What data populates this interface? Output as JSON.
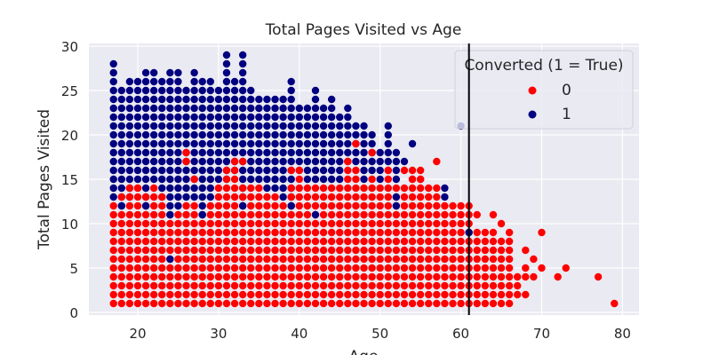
{
  "chart_data": {
    "type": "scatter",
    "title": "Total Pages Visited vs Age",
    "xlabel": "Age",
    "ylabel": "Total Pages Visited",
    "xlim": [
      13.95,
      82.05
    ],
    "ylim": [
      -0.3,
      30.3
    ],
    "xticks": [
      20,
      30,
      40,
      50,
      60,
      70,
      80
    ],
    "yticks": [
      0,
      5,
      10,
      15,
      20,
      25,
      30
    ],
    "grid": true,
    "background": "#eaeaf2",
    "legend": {
      "title": "Converted (1 = True)",
      "placement": "top-right",
      "entries": [
        {
          "label": "0",
          "color": "#ff0000"
        },
        {
          "label": "1",
          "color": "#000080"
        }
      ]
    },
    "reference_line": {
      "orientation": "vertical",
      "x": 61,
      "color": "#000000"
    },
    "series_note_format": "columns: [age, class-0 pages from 1 up to red_max, class-1 pages from blue_min to blue_max]",
    "columns": [
      [
        17,
        12,
        13,
        28
      ],
      [
        18,
        11,
        12,
        25
      ],
      [
        19,
        13,
        13,
        26
      ],
      [
        20,
        14,
        15,
        26
      ],
      [
        21,
        13,
        12,
        27
      ],
      [
        22,
        14,
        15,
        27
      ],
      [
        23,
        13,
        13,
        26
      ],
      [
        24,
        10,
        11,
        27
      ],
      [
        25,
        11,
        12,
        27
      ],
      [
        26,
        12,
        13,
        25
      ],
      [
        27,
        12,
        13,
        27
      ],
      [
        28,
        10,
        11,
        26
      ],
      [
        29,
        12,
        13,
        26
      ],
      [
        30,
        14,
        15,
        25
      ],
      [
        31,
        14,
        15,
        29
      ],
      [
        32,
        15,
        16,
        26
      ],
      [
        33,
        14,
        12,
        29
      ],
      [
        34,
        14,
        15,
        25
      ],
      [
        35,
        14,
        15,
        24
      ],
      [
        36,
        13,
        14,
        24
      ],
      [
        37,
        13,
        14,
        24
      ],
      [
        38,
        12,
        13,
        24
      ],
      [
        39,
        14,
        12,
        26
      ],
      [
        40,
        15,
        16,
        23
      ],
      [
        41,
        14,
        15,
        23
      ],
      [
        42,
        14,
        15,
        25
      ],
      [
        43,
        14,
        15,
        23
      ],
      [
        44,
        14,
        15,
        24
      ],
      [
        45,
        14,
        15,
        22
      ],
      [
        46,
        16,
        17,
        23
      ],
      [
        47,
        16,
        17,
        21
      ],
      [
        48,
        14,
        15,
        21
      ],
      [
        49,
        15,
        16,
        20
      ],
      [
        50,
        14,
        15,
        18
      ],
      [
        51,
        16,
        17,
        21
      ],
      [
        52,
        14,
        15,
        18
      ],
      [
        53,
        14,
        17,
        17
      ],
      [
        54,
        16,
        19,
        19
      ],
      [
        55,
        16,
        0,
        0
      ],
      [
        56,
        14,
        0,
        0
      ],
      [
        57,
        14,
        0,
        0
      ],
      [
        58,
        12,
        13,
        14
      ],
      [
        59,
        12,
        0,
        0
      ],
      [
        60,
        12,
        0,
        0
      ],
      [
        61,
        12,
        0,
        0
      ],
      [
        62,
        9,
        0,
        0
      ],
      [
        63,
        9,
        0,
        0
      ],
      [
        64,
        9,
        0,
        0
      ],
      [
        65,
        8,
        0,
        0
      ],
      [
        66,
        9,
        0,
        0
      ]
    ],
    "extra_points_0": [
      [
        26,
        17
      ],
      [
        26,
        18
      ],
      [
        27,
        15
      ],
      [
        31,
        15
      ],
      [
        31,
        16
      ],
      [
        32,
        16
      ],
      [
        32,
        17
      ],
      [
        33,
        17
      ],
      [
        39,
        16
      ],
      [
        40,
        16
      ],
      [
        46,
        17
      ],
      [
        47,
        19
      ],
      [
        49,
        18
      ],
      [
        51,
        16
      ],
      [
        53,
        16
      ],
      [
        54,
        15
      ],
      [
        55,
        15
      ],
      [
        57,
        17
      ],
      [
        18,
        13
      ],
      [
        19,
        14
      ],
      [
        20,
        14
      ],
      [
        62,
        11
      ],
      [
        64,
        11
      ],
      [
        65,
        10
      ],
      [
        67,
        2
      ],
      [
        67,
        3
      ],
      [
        67,
        4
      ],
      [
        68,
        2
      ],
      [
        68,
        4
      ],
      [
        68,
        5
      ],
      [
        68,
        7
      ],
      [
        69,
        4
      ],
      [
        69,
        6
      ],
      [
        70,
        5
      ],
      [
        70,
        9
      ],
      [
        72,
        4
      ],
      [
        73,
        5
      ],
      [
        77,
        4
      ],
      [
        79,
        1
      ]
    ],
    "extra_points_1": [
      [
        24,
        6
      ],
      [
        24,
        11
      ],
      [
        28,
        11
      ],
      [
        33,
        12
      ],
      [
        39,
        12
      ],
      [
        42,
        11
      ],
      [
        52,
        12
      ],
      [
        52,
        13
      ],
      [
        61,
        9
      ],
      [
        60,
        21
      ],
      [
        18,
        12
      ],
      [
        21,
        12
      ]
    ]
  }
}
